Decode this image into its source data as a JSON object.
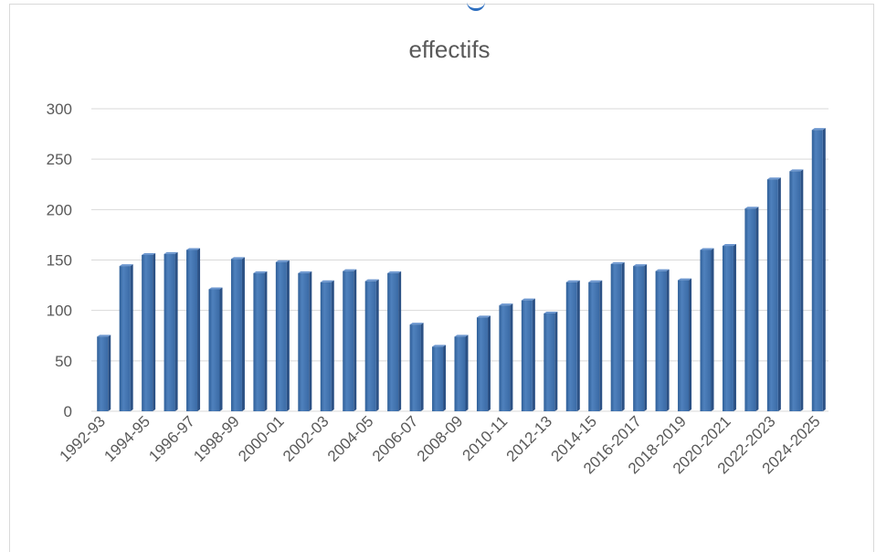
{
  "chart_data": {
    "type": "bar",
    "title": "effectifs",
    "xlabel": "",
    "ylabel": "",
    "ylim": [
      0,
      300
    ],
    "yticks": [
      0,
      50,
      100,
      150,
      200,
      250,
      300
    ],
    "grid": true,
    "legend": "none",
    "bar_color": "#4f81bd",
    "categories": [
      "1992-93",
      "1993-94",
      "1994-95",
      "1995-96",
      "1996-97",
      "1997-98",
      "1998-99",
      "1999-00",
      "2000-01",
      "2001-02",
      "2002-03",
      "2003-04",
      "2004-05",
      "2005-06",
      "2006-07",
      "2007-08",
      "2008-09",
      "2009-10",
      "2010-11",
      "2011-12",
      "2012-13",
      "2013-14",
      "2014-15",
      "2015-16",
      "2016-2017",
      "2017-2018",
      "2018-2019",
      "2019-2020",
      "2020-2021",
      "2021-2022",
      "2022-2023",
      "2023-2024",
      "2024-2025"
    ],
    "visible_x_labels": [
      "1992-93",
      "1994-95",
      "1996-97",
      "1998-99",
      "2000-01",
      "2002-03",
      "2004-05",
      "2006-07",
      "2008-09",
      "2010-11",
      "2012-13",
      "2014-15",
      "2016-2017",
      "2018-2019",
      "2020-2021",
      "2022-2023",
      "2024-2025"
    ],
    "values": [
      74,
      144,
      155,
      156,
      160,
      121,
      151,
      137,
      148,
      137,
      128,
      139,
      129,
      137,
      86,
      64,
      74,
      93,
      105,
      110,
      97,
      128,
      128,
      146,
      144,
      139,
      130,
      160,
      164,
      201,
      230,
      238,
      279
    ]
  }
}
